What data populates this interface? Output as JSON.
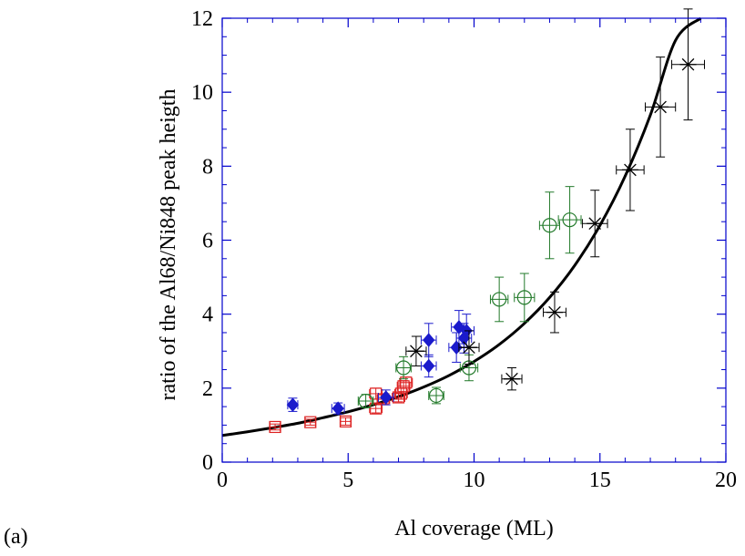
{
  "chart_data": {
    "type": "scatter",
    "title": "",
    "xlabel": "Al coverage (ML)",
    "ylabel": "ratio of the Al68/Ni848 peak heigth",
    "xlim": [
      0,
      20
    ],
    "ylim": [
      0,
      12
    ],
    "x_ticks": [
      0,
      5,
      10,
      15,
      20
    ],
    "y_ticks": [
      0,
      2,
      4,
      6,
      8,
      10,
      12
    ],
    "grid": false,
    "legend": "none",
    "panel_label": "(a)",
    "series": [
      {
        "marker": "square",
        "color": "#dd2222",
        "points": [
          {
            "x": 2.1,
            "y": 0.95,
            "xerr": 0.2,
            "yerr": 0.08
          },
          {
            "x": 3.5,
            "y": 1.08,
            "xerr": 0.2,
            "yerr": 0.08
          },
          {
            "x": 4.9,
            "y": 1.1,
            "xerr": 0.2,
            "yerr": 0.1
          },
          {
            "x": 6.1,
            "y": 1.45,
            "xerr": 0.25,
            "yerr": 0.12
          },
          {
            "x": 6.1,
            "y": 1.85,
            "xerr": 0.25,
            "yerr": 0.15
          },
          {
            "x": 6.4,
            "y": 1.7,
            "xerr": 0.25,
            "yerr": 0.12
          },
          {
            "x": 7.0,
            "y": 1.75,
            "xerr": 0.25,
            "yerr": 0.12
          },
          {
            "x": 7.1,
            "y": 1.85,
            "xerr": 0.25,
            "yerr": 0.15
          },
          {
            "x": 7.2,
            "y": 2.05,
            "xerr": 0.25,
            "yerr": 0.15
          },
          {
            "x": 7.3,
            "y": 2.15,
            "xerr": 0.25,
            "yerr": 0.15
          }
        ]
      },
      {
        "marker": "diamond",
        "color": "#1a1acc",
        "points": [
          {
            "x": 2.8,
            "y": 1.55,
            "xerr": 0.2,
            "yerr": 0.18
          },
          {
            "x": 4.6,
            "y": 1.45,
            "xerr": 0.25,
            "yerr": 0.15
          },
          {
            "x": 6.5,
            "y": 1.75,
            "xerr": 0.3,
            "yerr": 0.2
          },
          {
            "x": 8.2,
            "y": 2.6,
            "xerr": 0.3,
            "yerr": 0.3
          },
          {
            "x": 8.2,
            "y": 3.3,
            "xerr": 0.3,
            "yerr": 0.45
          },
          {
            "x": 9.3,
            "y": 3.1,
            "xerr": 0.3,
            "yerr": 0.4
          },
          {
            "x": 9.4,
            "y": 3.65,
            "xerr": 0.3,
            "yerr": 0.45
          },
          {
            "x": 9.6,
            "y": 3.35,
            "xerr": 0.3,
            "yerr": 0.4
          },
          {
            "x": 9.7,
            "y": 3.55,
            "xerr": 0.3,
            "yerr": 0.45
          }
        ]
      },
      {
        "marker": "circle",
        "color": "#227a2a",
        "points": [
          {
            "x": 5.7,
            "y": 1.65,
            "xerr": 0.3,
            "yerr": 0.18
          },
          {
            "x": 7.2,
            "y": 2.55,
            "xerr": 0.3,
            "yerr": 0.3
          },
          {
            "x": 8.5,
            "y": 1.8,
            "xerr": 0.3,
            "yerr": 0.22
          },
          {
            "x": 9.8,
            "y": 2.55,
            "xerr": 0.35,
            "yerr": 0.35
          },
          {
            "x": 11.0,
            "y": 4.4,
            "xerr": 0.35,
            "yerr": 0.6
          },
          {
            "x": 12.0,
            "y": 4.45,
            "xerr": 0.4,
            "yerr": 0.65
          },
          {
            "x": 13.0,
            "y": 6.4,
            "xerr": 0.4,
            "yerr": 0.9
          },
          {
            "x": 13.8,
            "y": 6.55,
            "xerr": 0.45,
            "yerr": 0.9
          }
        ]
      },
      {
        "marker": "asterisk",
        "color": "#000000",
        "points": [
          {
            "x": 7.7,
            "y": 3.0,
            "xerr": 0.4,
            "yerr": 0.4
          },
          {
            "x": 9.8,
            "y": 3.1,
            "xerr": 0.4,
            "yerr": 0.45
          },
          {
            "x": 11.5,
            "y": 2.25,
            "xerr": 0.4,
            "yerr": 0.3
          },
          {
            "x": 13.2,
            "y": 4.05,
            "xerr": 0.45,
            "yerr": 0.55
          },
          {
            "x": 14.8,
            "y": 6.45,
            "xerr": 0.5,
            "yerr": 0.9
          },
          {
            "x": 16.2,
            "y": 7.9,
            "xerr": 0.55,
            "yerr": 1.1
          },
          {
            "x": 17.4,
            "y": 9.6,
            "xerr": 0.6,
            "yerr": 1.35
          },
          {
            "x": 18.5,
            "y": 10.75,
            "xerr": 0.65,
            "yerr": 1.5
          }
        ]
      }
    ],
    "fit_curve": {
      "color": "#000000",
      "x": [
        0,
        1,
        2,
        3,
        4,
        5,
        6,
        7,
        8,
        9,
        10,
        11,
        12,
        13,
        14,
        15,
        16,
        17,
        18,
        19
      ],
      "y": [
        0.72,
        0.82,
        0.93,
        1.05,
        1.2,
        1.36,
        1.55,
        1.77,
        2.03,
        2.34,
        2.72,
        3.18,
        3.75,
        4.45,
        5.32,
        6.4,
        7.73,
        9.38,
        11.4,
        12.0
      ]
    }
  }
}
